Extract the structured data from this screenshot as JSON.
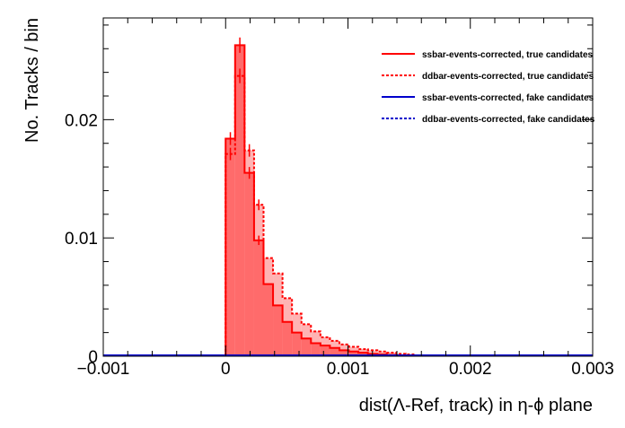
{
  "chart_data": {
    "type": "histogram",
    "title": "",
    "xlabel": "dist(Λ-Ref, track) in η-ϕ plane",
    "ylabel": "No. Tracks / bin",
    "xlim": [
      -0.001,
      0.003
    ],
    "ylim": [
      0,
      0.0286
    ],
    "x_ticks": [
      -0.001,
      0,
      0.001,
      0.002,
      0.003
    ],
    "x_tick_labels": [
      "−0.001",
      "0",
      "0.001",
      "0.002",
      "0.003"
    ],
    "y_ticks": [
      0,
      0.01,
      0.02
    ],
    "y_tick_labels": [
      "0",
      "0.01",
      "0.02"
    ],
    "grid": false,
    "legend_position": "top-right",
    "bin_width": 7.75e-05,
    "bin_start": 0,
    "series": [
      {
        "name": "ssbar-events-corrected, true candidates",
        "color": "#ff0000",
        "style": "solid",
        "fill": "#ff6b6b",
        "values": [
          0.0184,
          0.0263,
          0.0155,
          0.0098,
          0.0061,
          0.0043,
          0.0029,
          0.002,
          0.0015,
          0.0011,
          0.0009,
          0.0007,
          0.0005,
          0.0004,
          0.0003,
          0.0002,
          0.00015,
          0.0001,
          8e-05,
          5e-05
        ]
      },
      {
        "name": "ddbar-events-corrected, true candidates",
        "color": "#ff0000",
        "style": "dotted",
        "fill": "#ffb3b3",
        "values": [
          0.0171,
          0.0237,
          0.0174,
          0.0128,
          0.0083,
          0.007,
          0.0049,
          0.0036,
          0.0027,
          0.0021,
          0.0016,
          0.0013,
          0.001,
          0.0008,
          0.0006,
          0.0005,
          0.0004,
          0.0003,
          0.0002,
          0.00015
        ]
      },
      {
        "name": "ssbar-events-corrected, fake candidates",
        "color": "#0000cc",
        "style": "solid",
        "values": []
      },
      {
        "name": "ddbar-events-corrected, fake candidates",
        "color": "#0000cc",
        "style": "dotted",
        "values": []
      }
    ]
  }
}
